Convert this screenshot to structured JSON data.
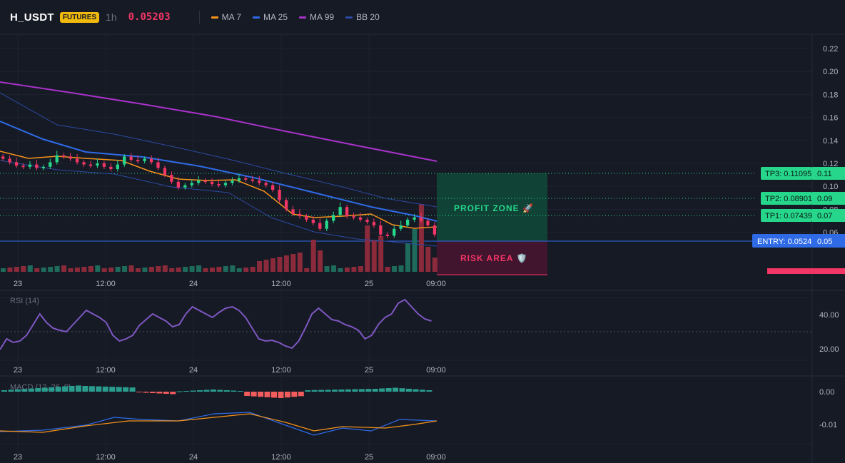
{
  "header": {
    "symbol": "H_USDT",
    "badge": "FUTURES",
    "timeframe": "1h",
    "price": "0.05203",
    "indicators": [
      {
        "label": "MA 7",
        "color": "#f7931a"
      },
      {
        "label": "MA 25",
        "color": "#2f6be6"
      },
      {
        "label": "MA 99",
        "color": "#a832c9"
      },
      {
        "label": "BB 20",
        "color": "#2b4aa0"
      }
    ]
  },
  "price_chart": {
    "y_ticks": [
      "0.22",
      "0.20",
      "0.18",
      "0.16",
      "0.14",
      "0.12",
      "0.10",
      "0.08",
      "0.06"
    ],
    "levels": [
      {
        "label": "TP3: 0.11095",
        "axis": "0.11",
        "kind": "tp"
      },
      {
        "label": "TP2: 0.08901",
        "axis": "0.09",
        "kind": "tp"
      },
      {
        "label": "TP1: 0.07439",
        "axis": "0.07",
        "kind": "tp"
      },
      {
        "label": "ENTRY: 0.05246",
        "axis": "0.05",
        "kind": "entry"
      }
    ],
    "profit_zone": "PROFIT ZONE 🚀",
    "risk_area": "RISK AREA 🛡️"
  },
  "time_axis": [
    "23",
    "12:00",
    "24",
    "12:00",
    "25",
    "09:00"
  ],
  "rsi": {
    "label": "RSI (14)",
    "ticks": [
      "40.00",
      "20.00"
    ]
  },
  "macd": {
    "label": "MACD (12, 26, 9)",
    "ticks": [
      "0.00",
      "-0.01"
    ]
  },
  "colors": {
    "up": "#26d68b",
    "down": "#f23665",
    "vol_up": "#1e6b5c",
    "vol_down": "#8b2a3a",
    "rsi": "#7e57c2"
  }
}
